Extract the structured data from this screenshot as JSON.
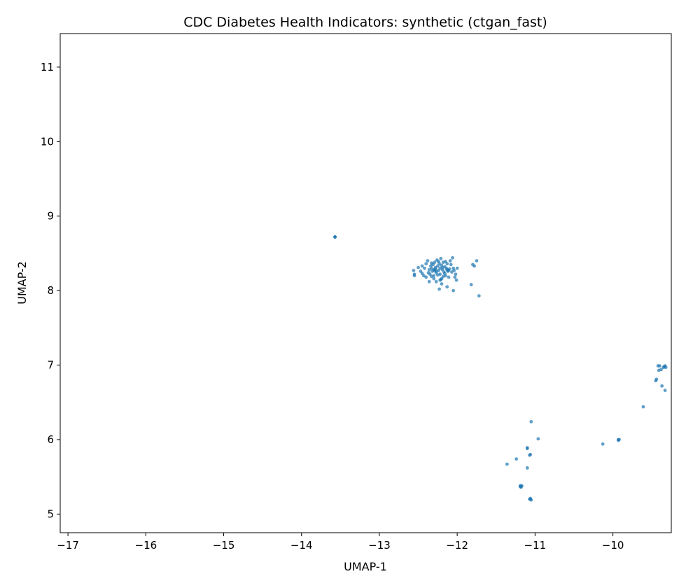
{
  "chart_data": {
    "type": "scatter",
    "title": "CDC Diabetes Health Indicators: synthetic (ctgan_fast)",
    "xlabel": "UMAP-1",
    "ylabel": "UMAP-2",
    "xlim": [
      -17.1,
      -9.25
    ],
    "ylim": [
      4.75,
      11.45
    ],
    "xticks": [
      -17,
      -16,
      -15,
      -14,
      -13,
      -12,
      -11,
      -10
    ],
    "yticks": [
      5,
      6,
      7,
      8,
      9,
      10,
      11
    ],
    "grid": false,
    "legend": "none",
    "color": "#1f77b4",
    "points": [
      [
        -13.57,
        8.72
      ],
      [
        -13.57,
        8.72
      ],
      [
        -13.57,
        8.72
      ],
      [
        -12.55,
        8.22
      ],
      [
        -12.55,
        8.2
      ],
      [
        -12.56,
        8.27
      ],
      [
        -12.5,
        8.31
      ],
      [
        -12.47,
        8.26
      ],
      [
        -12.45,
        8.33
      ],
      [
        -12.42,
        8.3
      ],
      [
        -12.4,
        8.36
      ],
      [
        -12.38,
        8.4
      ],
      [
        -12.36,
        8.28
      ],
      [
        -12.35,
        8.22
      ],
      [
        -12.34,
        8.33
      ],
      [
        -12.33,
        8.3
      ],
      [
        -12.32,
        8.26
      ],
      [
        -12.31,
        8.35
      ],
      [
        -12.3,
        8.28
      ],
      [
        -12.3,
        8.2
      ],
      [
        -12.29,
        8.38
      ],
      [
        -12.28,
        8.31
      ],
      [
        -12.27,
        8.24
      ],
      [
        -12.26,
        8.41
      ],
      [
        -12.25,
        8.33
      ],
      [
        -12.24,
        8.27
      ],
      [
        -12.23,
        8.36
      ],
      [
        -12.22,
        8.22
      ],
      [
        -12.22,
        8.3
      ],
      [
        -12.21,
        8.43
      ],
      [
        -12.2,
        8.34
      ],
      [
        -12.19,
        8.28
      ],
      [
        -12.18,
        8.38
      ],
      [
        -12.17,
        8.25
      ],
      [
        -12.16,
        8.32
      ],
      [
        -12.15,
        8.2
      ],
      [
        -12.14,
        8.3
      ],
      [
        -12.13,
        8.36
      ],
      [
        -12.12,
        8.27
      ],
      [
        -12.11,
        8.18
      ],
      [
        -12.1,
        8.29
      ],
      [
        -12.08,
        8.35
      ],
      [
        -12.07,
        8.25
      ],
      [
        -12.06,
        8.44
      ],
      [
        -12.05,
        8.3
      ],
      [
        -12.04,
        8.27
      ],
      [
        -12.03,
        8.18
      ],
      [
        -12.02,
        8.22
      ],
      [
        -12.0,
        8.3
      ],
      [
        -12.01,
        8.14
      ],
      [
        -12.05,
        8.0
      ],
      [
        -12.13,
        8.05
      ],
      [
        -12.2,
        8.09
      ],
      [
        -12.23,
        8.02
      ],
      [
        -12.21,
        8.15
      ],
      [
        -12.22,
        8.14
      ],
      [
        -12.2,
        8.16
      ],
      [
        -12.3,
        8.16
      ],
      [
        -12.33,
        8.19
      ],
      [
        -12.4,
        8.18
      ],
      [
        -12.43,
        8.2
      ],
      [
        -12.36,
        8.12
      ],
      [
        -12.27,
        8.12
      ],
      [
        -12.13,
        8.28
      ],
      [
        -12.12,
        8.26
      ],
      [
        -12.11,
        8.27
      ],
      [
        -12.28,
        8.29
      ],
      [
        -12.29,
        8.27
      ],
      [
        -12.27,
        8.26
      ],
      [
        -12.25,
        8.21
      ],
      [
        -12.18,
        8.19
      ],
      [
        -12.16,
        8.23
      ],
      [
        -12.15,
        8.39
      ],
      [
        -12.09,
        8.4
      ],
      [
        -12.45,
        8.23
      ],
      [
        -12.37,
        8.24
      ],
      [
        -12.33,
        8.37
      ],
      [
        -12.24,
        8.39
      ],
      [
        -12.19,
        8.31
      ],
      [
        -11.8,
        8.35
      ],
      [
        -11.78,
        8.33
      ],
      [
        -11.75,
        8.4
      ],
      [
        -11.82,
        8.08
      ],
      [
        -11.72,
        7.93
      ],
      [
        -11.05,
        6.24
      ],
      [
        -10.96,
        6.01
      ],
      [
        -11.1,
        5.89
      ],
      [
        -11.1,
        5.88
      ],
      [
        -11.07,
        5.79
      ],
      [
        -11.06,
        5.8
      ],
      [
        -11.24,
        5.74
      ],
      [
        -11.36,
        5.67
      ],
      [
        -11.1,
        5.62
      ],
      [
        -11.19,
        5.38
      ],
      [
        -11.18,
        5.37
      ],
      [
        -11.17,
        5.38
      ],
      [
        -11.18,
        5.36
      ],
      [
        -11.19,
        5.37
      ],
      [
        -11.07,
        5.2
      ],
      [
        -11.06,
        5.2
      ],
      [
        -11.05,
        5.19
      ],
      [
        -11.06,
        5.21
      ],
      [
        -10.13,
        5.94
      ],
      [
        -9.93,
        5.99
      ],
      [
        -9.92,
        6.0
      ],
      [
        -9.93,
        6.0
      ],
      [
        -9.61,
        6.44
      ],
      [
        -9.44,
        6.81
      ],
      [
        -9.45,
        6.79
      ],
      [
        -9.42,
        6.99
      ],
      [
        -9.4,
        6.99
      ],
      [
        -9.38,
        6.94
      ],
      [
        -9.37,
        6.72
      ],
      [
        -9.33,
        6.66
      ],
      [
        -9.34,
        6.98
      ],
      [
        -9.32,
        6.97
      ],
      [
        -9.35,
        6.97
      ],
      [
        -9.33,
        6.99
      ],
      [
        -9.41,
        6.93
      ]
    ]
  }
}
